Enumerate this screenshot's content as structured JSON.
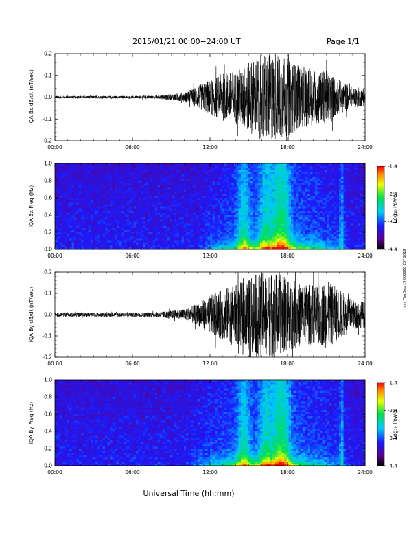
{
  "page": {
    "title": "2015/01/21  00:00−24:00 UT",
    "page_label": "Page 1/1",
    "footer_xlabel": "Universal Time (hh:mm)",
    "stamp": "xxx Thu Sep 19 000000 CST 2019"
  },
  "chart_data": [
    {
      "type": "line",
      "ylabel": "IQA Bx dB/dt (nT/sec)",
      "xlabel": "",
      "xlim": [
        "00:00",
        "24:00"
      ],
      "ylim": [
        -0.2,
        0.2
      ],
      "x_ticks": [
        "00:00",
        "06:00",
        "12:00",
        "18:00",
        "24:00"
      ],
      "y_ticks": [
        "-0.2",
        "-0.1",
        "0.0",
        "0.1",
        "0.2"
      ],
      "color": "#000000",
      "envelope": {
        "x_hours": [
          0,
          2,
          4,
          6,
          8,
          10,
          11,
          12,
          13,
          14,
          15,
          16,
          17,
          18,
          19,
          20,
          21,
          22,
          23,
          24
        ],
        "amplitude": [
          0.006,
          0.006,
          0.006,
          0.006,
          0.008,
          0.02,
          0.05,
          0.08,
          0.11,
          0.12,
          0.16,
          0.2,
          0.2,
          0.18,
          0.14,
          0.13,
          0.12,
          0.08,
          0.05,
          0.04
        ]
      }
    },
    {
      "type": "heatmap",
      "ylabel": "IQA Bx Freq (Hz)",
      "xlim": [
        "00:00",
        "24:00"
      ],
      "ylim": [
        0.0,
        1.0
      ],
      "x_ticks": [
        "00:00",
        "06:00",
        "12:00",
        "18:00",
        "24:00"
      ],
      "y_ticks": [
        "0.0",
        "0.2",
        "0.4",
        "0.6",
        "0.8",
        "1.0"
      ],
      "colorbar": {
        "label": "Log₁₀ Power",
        "ticks": [
          "-1.4",
          "-2.4",
          "-3.4",
          "-4.4"
        ],
        "range": [
          -4.4,
          -1.4
        ]
      },
      "features": {
        "bright_bands_hours": [
          14.6,
          16.3,
          17.2,
          17.8,
          22.2
        ],
        "lowfreq_enhancement_hours": [
          11,
          23
        ]
      }
    },
    {
      "type": "line",
      "ylabel": "IQA By dB/dt (nT/sec)",
      "xlabel": "",
      "xlim": [
        "00:00",
        "24:00"
      ],
      "ylim": [
        -0.2,
        0.2
      ],
      "x_ticks": [
        "00:00",
        "06:00",
        "12:00",
        "18:00",
        "24:00"
      ],
      "y_ticks": [
        "-0.2",
        "-0.1",
        "0.0",
        "0.1",
        "0.2"
      ],
      "color": "#000000",
      "envelope": {
        "x_hours": [
          0,
          2,
          4,
          6,
          8,
          10,
          11,
          12,
          13,
          14,
          15,
          16,
          17,
          18,
          19,
          20,
          21,
          22,
          23,
          24
        ],
        "amplitude": [
          0.01,
          0.01,
          0.01,
          0.01,
          0.012,
          0.025,
          0.05,
          0.09,
          0.12,
          0.14,
          0.17,
          0.2,
          0.2,
          0.17,
          0.15,
          0.14,
          0.16,
          0.12,
          0.07,
          0.06
        ]
      }
    },
    {
      "type": "heatmap",
      "ylabel": "IQA By Freq (Hz)",
      "xlim": [
        "00:00",
        "24:00"
      ],
      "ylim": [
        0.0,
        1.0
      ],
      "x_ticks": [
        "00:00",
        "06:00",
        "12:00",
        "18:00",
        "24:00"
      ],
      "y_ticks": [
        "0.0",
        "0.2",
        "0.4",
        "0.6",
        "0.8",
        "1.0"
      ],
      "colorbar": {
        "label": "Log₁₀ Power",
        "ticks": [
          "-1.4",
          "-2.4",
          "-3.4",
          "-4.4"
        ],
        "range": [
          -4.4,
          -1.4
        ]
      },
      "features": {
        "bright_bands_hours": [
          14.6,
          16.3,
          17.2,
          17.8,
          22.2
        ],
        "lowfreq_enhancement_hours": [
          10,
          23
        ]
      }
    }
  ]
}
